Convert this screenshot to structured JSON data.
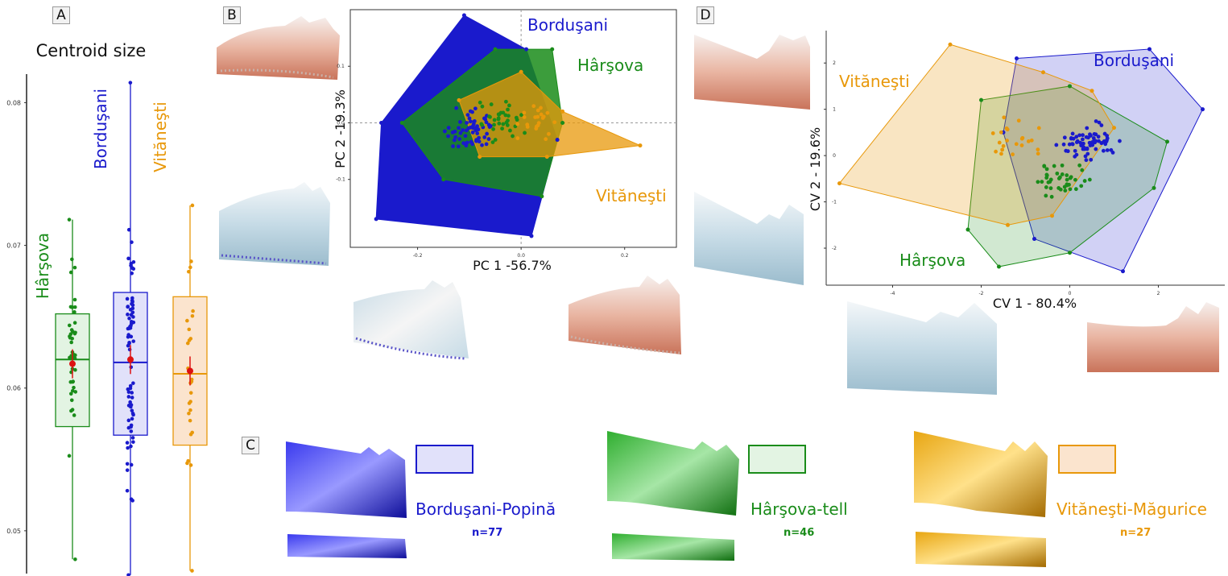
{
  "panels": {
    "a": "A",
    "b": "B",
    "c": "C",
    "d": "D"
  },
  "colors": {
    "borduseni": "#1a1acc",
    "harsova": "#1a8c1a",
    "vitanesti": "#e8980a",
    "mean": "#dd1111"
  },
  "panel_a": {
    "title": "Centroid size",
    "groups": [
      "Hârşova",
      "Borduşani",
      "Vităneşti"
    ]
  },
  "panel_b": {
    "xlabel": "PC 1 -56.7%",
    "ylabel": "PC 2 -19.3%",
    "group_labels": {
      "borduseni": "Borduşani",
      "harsova": "Hârşova",
      "vitanesti": "Vităneşti"
    }
  },
  "panel_c": {
    "legend": [
      {
        "key": "borduseni",
        "label": "Borduşani-Popină",
        "n": "n=77"
      },
      {
        "key": "harsova",
        "label": "Hârşova-tell",
        "n": "n=46"
      },
      {
        "key": "vitanesti",
        "label": "Vităneşti-Măgurice",
        "n": "n=27"
      }
    ]
  },
  "panel_d": {
    "xlabel": "CV 1 - 80.4%",
    "ylabel": "CV 2 - 19.6%",
    "group_labels": {
      "borduseni": "Borduşani",
      "harsova": "Hârşova",
      "vitanesti": "Vităneşti"
    }
  },
  "chart_data": [
    {
      "type": "box",
      "title": "Centroid size",
      "ylim": [
        0.047,
        0.082
      ],
      "yticks": [
        "0.05",
        "0.06",
        "0.07",
        "0.08"
      ],
      "categories": [
        "Hârşova",
        "Borduşani",
        "Vităneşti"
      ],
      "series": [
        {
          "name": "Hârşova",
          "min": 0.048,
          "q1": 0.0573,
          "median": 0.062,
          "q3": 0.0652,
          "max": 0.0718,
          "mean": 0.0617
        },
        {
          "name": "Borduşani",
          "min": 0.0469,
          "q1": 0.0567,
          "median": 0.0618,
          "q3": 0.0667,
          "max": 0.0814,
          "mean": 0.062
        },
        {
          "name": "Vităneşti",
          "min": 0.0472,
          "q1": 0.056,
          "median": 0.061,
          "q3": 0.0664,
          "max": 0.0728,
          "mean": 0.0612
        }
      ]
    },
    {
      "type": "scatter",
      "xlabel": "PC 1 -56.7%",
      "ylabel": "PC 2 -19.3%",
      "xticks": [
        "-0.2",
        "0.0",
        "0.2"
      ],
      "yticks": [
        "0.1",
        "0.0",
        "-0.1"
      ],
      "xlim": [
        -0.33,
        0.3
      ],
      "ylim": [
        -0.22,
        0.2
      ],
      "series": [
        {
          "name": "Borduşani",
          "hull": [
            [
              -0.11,
              0.19
            ],
            [
              -0.27,
              0.0
            ],
            [
              -0.28,
              -0.17
            ],
            [
              0.02,
              -0.2
            ],
            [
              0.07,
              -0.03
            ],
            [
              0.01,
              0.13
            ]
          ]
        },
        {
          "name": "Hârşova",
          "hull": [
            [
              -0.05,
              0.13
            ],
            [
              -0.23,
              0.0
            ],
            [
              -0.15,
              -0.1
            ],
            [
              0.04,
              -0.13
            ],
            [
              0.08,
              0.0
            ],
            [
              0.06,
              0.13
            ]
          ]
        },
        {
          "name": "Vităneşti",
          "hull": [
            [
              0.0,
              0.09
            ],
            [
              -0.12,
              0.04
            ],
            [
              -0.08,
              -0.06
            ],
            [
              0.05,
              -0.06
            ],
            [
              0.23,
              -0.04
            ],
            [
              0.08,
              0.02
            ]
          ]
        }
      ]
    },
    {
      "type": "scatter",
      "xlabel": "CV 1 - 80.4%",
      "ylabel": "CV 2 - 19.6%",
      "xticks": [
        "-4",
        "-2",
        "0",
        "2"
      ],
      "yticks": [
        "2",
        "1",
        "0",
        "-1",
        "-2"
      ],
      "xlim": [
        -5.5,
        3.5
      ],
      "ylim": [
        -2.8,
        2.7
      ],
      "series": [
        {
          "name": "Borduşani",
          "hull": [
            [
              -1.2,
              2.1
            ],
            [
              -1.5,
              0.5
            ],
            [
              -0.8,
              -1.8
            ],
            [
              1.2,
              -2.5
            ],
            [
              3.0,
              1.0
            ],
            [
              1.8,
              2.3
            ]
          ]
        },
        {
          "name": "Hârşova",
          "hull": [
            [
              -2.0,
              1.2
            ],
            [
              -2.3,
              -1.6
            ],
            [
              -1.6,
              -2.4
            ],
            [
              0.0,
              -2.1
            ],
            [
              1.9,
              -0.7
            ],
            [
              2.2,
              0.3
            ],
            [
              0.0,
              1.5
            ]
          ]
        },
        {
          "name": "Vităneşti",
          "hull": [
            [
              -2.7,
              2.4
            ],
            [
              -5.2,
              -0.6
            ],
            [
              -1.4,
              -1.5
            ],
            [
              -0.4,
              -1.3
            ],
            [
              1.0,
              0.6
            ],
            [
              0.5,
              1.4
            ],
            [
              -0.6,
              1.8
            ]
          ]
        }
      ]
    }
  ]
}
